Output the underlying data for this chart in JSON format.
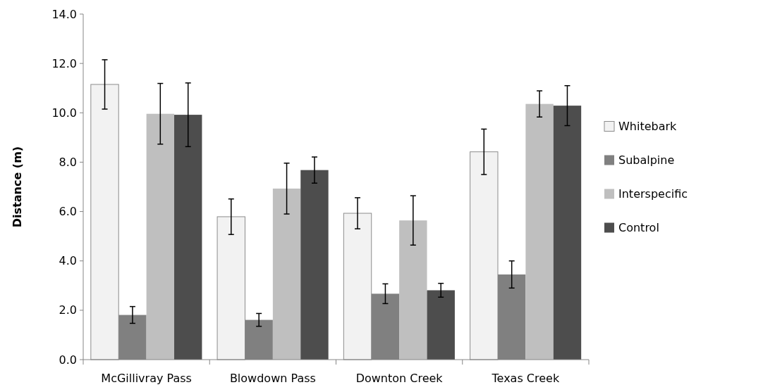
{
  "chart_data": {
    "type": "bar",
    "ylabel": "Distance (m)",
    "categories": [
      "McGillivray Pass",
      "Blowdown Pass",
      "Downton Creek",
      "Texas Creek"
    ],
    "series": [
      {
        "name": "Whitebark",
        "color": "#f2f2f2",
        "values": [
          11.15,
          5.79,
          5.93,
          8.42
        ],
        "errors": [
          1.0,
          0.72,
          0.63,
          0.92
        ]
      },
      {
        "name": "Subalpine",
        "color": "#808080",
        "values": [
          1.81,
          1.61,
          2.67,
          3.45
        ],
        "errors": [
          0.34,
          0.26,
          0.4,
          0.55
        ]
      },
      {
        "name": "Interspecific",
        "color": "#bfbfbf",
        "values": [
          9.96,
          6.93,
          5.64,
          10.36
        ],
        "errors": [
          1.23,
          1.03,
          1.0,
          0.53
        ]
      },
      {
        "name": "Control",
        "color": "#4d4d4d",
        "values": [
          9.92,
          7.68,
          2.81,
          10.29
        ],
        "errors": [
          1.29,
          0.53,
          0.28,
          0.81
        ]
      }
    ],
    "ylim": [
      0,
      14
    ],
    "yticks": [
      {
        "value": 0,
        "label": "0.0"
      },
      {
        "value": 2,
        "label": "2.0"
      },
      {
        "value": 4,
        "label": "4.0"
      },
      {
        "value": 6,
        "label": "6.0"
      },
      {
        "value": 8,
        "label": "8.0"
      },
      {
        "value": 10,
        "label": "10.0"
      },
      {
        "value": 12,
        "label": "12.0"
      },
      {
        "value": 14,
        "label": "14.0"
      }
    ],
    "grid": false,
    "legend": "right"
  }
}
